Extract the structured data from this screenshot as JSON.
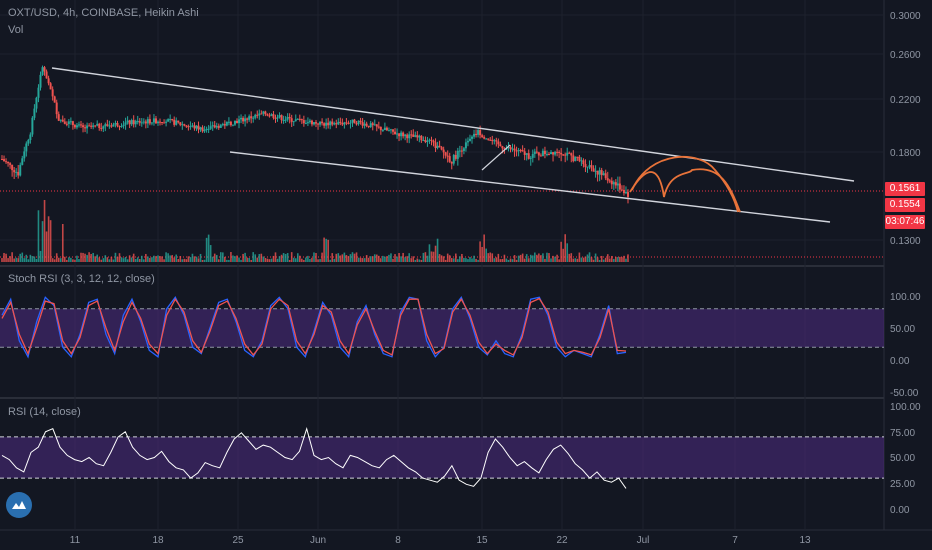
{
  "header": {
    "symbol_line": "OXT/USD, 4h, COINBASE, Heikin Ashi",
    "volume_label": "Vol"
  },
  "panels": {
    "stoch_label": "Stoch RSI (3, 3, 12, 12, close)",
    "rsi_label": "RSI (14, close)"
  },
  "badges": {
    "price_a": "0.1561",
    "price_b": "0.1554",
    "countdown": "03:07:46"
  },
  "colors": {
    "background": "#131722",
    "up": "#26a69a",
    "down": "#ef5350",
    "trendline": "#d1d4dc",
    "projection": "#e8733a",
    "stoch_k": "#2962ff",
    "stoch_d": "#ef5350",
    "band_fill": "#4a2a7a",
    "rsi_line": "#ffffff",
    "price_line": "#f23645"
  },
  "chart_data": [
    {
      "type": "candlestick",
      "panel": "price",
      "y_ticks": [
        "0.3000",
        "0.2600",
        "0.2200",
        "0.1800",
        "0.1300"
      ],
      "x_ticks": [
        "11",
        "18",
        "25",
        "Jun",
        "8",
        "15",
        "22",
        "Jul",
        "7",
        "13"
      ],
      "price_levels": [
        0.1561,
        0.1554
      ],
      "ylim": [
        0.12,
        0.3
      ],
      "series_hint": "Heikin Ashi 4h candles, downtrend channel from ~0.250 to ~0.156",
      "anchors": [
        [
          0,
          0.176
        ],
        [
          8,
          0.168
        ],
        [
          14,
          0.195
        ],
        [
          20,
          0.249
        ],
        [
          28,
          0.205
        ],
        [
          40,
          0.198
        ],
        [
          62,
          0.202
        ],
        [
          80,
          0.204
        ],
        [
          100,
          0.197
        ],
        [
          130,
          0.209
        ],
        [
          140,
          0.205
        ],
        [
          160,
          0.201
        ],
        [
          175,
          0.203
        ],
        [
          195,
          0.194
        ],
        [
          210,
          0.189
        ],
        [
          222,
          0.175
        ],
        [
          235,
          0.195
        ],
        [
          245,
          0.185
        ],
        [
          260,
          0.178
        ],
        [
          275,
          0.181
        ],
        [
          290,
          0.172
        ],
        [
          305,
          0.16
        ],
        [
          309,
          0.156
        ]
      ]
    },
    {
      "type": "bar",
      "panel": "volume",
      "series_hint": "trading volume bars, spikes near start and mid-range"
    },
    {
      "type": "line",
      "panel": "stoch_rsi",
      "y_ticks": [
        "100.00",
        "50.00",
        "0.00",
        "-50.00"
      ],
      "ylim": [
        -50,
        110
      ],
      "bands": [
        80,
        20
      ],
      "series": [
        {
          "values": [
            70,
            95,
            30,
            5,
            60,
            98,
            85,
            20,
            5,
            40,
            90,
            95,
            40,
            10,
            70,
            95,
            60,
            15,
            5,
            80,
            98,
            70,
            20,
            10,
            50,
            90,
            95,
            60,
            15,
            5,
            30,
            85,
            98,
            80,
            20,
            5,
            45,
            90,
            70,
            20,
            5,
            60,
            85,
            40,
            10,
            5,
            75,
            98,
            95,
            30,
            5,
            20,
            80,
            98,
            65,
            20,
            8,
            30,
            10,
            5,
            40,
            95,
            98,
            70,
            20,
            5,
            15,
            10,
            5,
            40,
            85,
            10,
            12
          ]
        },
        {
          "values": [
            65,
            90,
            40,
            10,
            50,
            92,
            88,
            30,
            10,
            35,
            85,
            92,
            50,
            15,
            60,
            90,
            65,
            25,
            10,
            70,
            95,
            75,
            30,
            12,
            45,
            85,
            92,
            65,
            25,
            8,
            25,
            80,
            95,
            85,
            30,
            10,
            40,
            85,
            75,
            30,
            10,
            55,
            80,
            45,
            15,
            8,
            70,
            95,
            95,
            40,
            10,
            18,
            75,
            95,
            70,
            28,
            10,
            25,
            15,
            8,
            35,
            90,
            96,
            75,
            28,
            10,
            15,
            12,
            8,
            35,
            80,
            15,
            14
          ]
        }
      ]
    },
    {
      "type": "line",
      "panel": "rsi",
      "y_ticks": [
        "100.00",
        "75.00",
        "50.00",
        "25.00",
        "0.00"
      ],
      "ylim": [
        -10,
        110
      ],
      "bands": [
        70,
        30
      ],
      "series": [
        {
          "values": [
            52,
            48,
            40,
            36,
            55,
            60,
            75,
            78,
            60,
            52,
            48,
            46,
            50,
            44,
            42,
            55,
            70,
            75,
            60,
            52,
            48,
            50,
            56,
            46,
            40,
            38,
            30,
            35,
            45,
            42,
            40,
            55,
            68,
            74,
            66,
            58,
            62,
            60,
            55,
            50,
            48,
            56,
            78,
            52,
            48,
            50,
            44,
            40,
            52,
            50,
            46,
            42,
            40,
            48,
            52,
            46,
            40,
            36,
            30,
            28,
            26,
            32,
            42,
            28,
            24,
            22,
            30,
            55,
            68,
            60,
            50,
            42,
            46,
            40,
            35,
            48,
            58,
            62,
            54,
            44,
            38,
            30,
            36,
            28,
            26,
            30,
            20
          ]
        }
      ]
    }
  ]
}
